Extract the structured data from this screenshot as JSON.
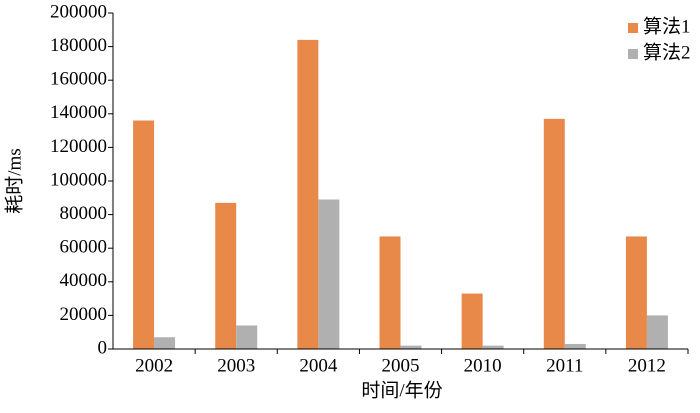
{
  "chart_data": {
    "type": "bar",
    "x_label": "时间/年份",
    "y_label": "耗时/ms",
    "categories": [
      "2002",
      "2003",
      "2004",
      "2005",
      "2010",
      "2011",
      "2012"
    ],
    "series": [
      {
        "name": "算法1",
        "color": "#e8894a",
        "values": [
          136000,
          87000,
          184000,
          67000,
          33000,
          137000,
          67000
        ]
      },
      {
        "name": "算法2",
        "color": "#b0b0b0",
        "values": [
          7000,
          14000,
          89000,
          2000,
          2000,
          3000,
          20000
        ]
      }
    ],
    "ylim": [
      0,
      200000
    ],
    "yticks": [
      0,
      20000,
      40000,
      60000,
      80000,
      100000,
      120000,
      140000,
      160000,
      180000,
      200000
    ],
    "legend": "upper right",
    "grid": false
  }
}
